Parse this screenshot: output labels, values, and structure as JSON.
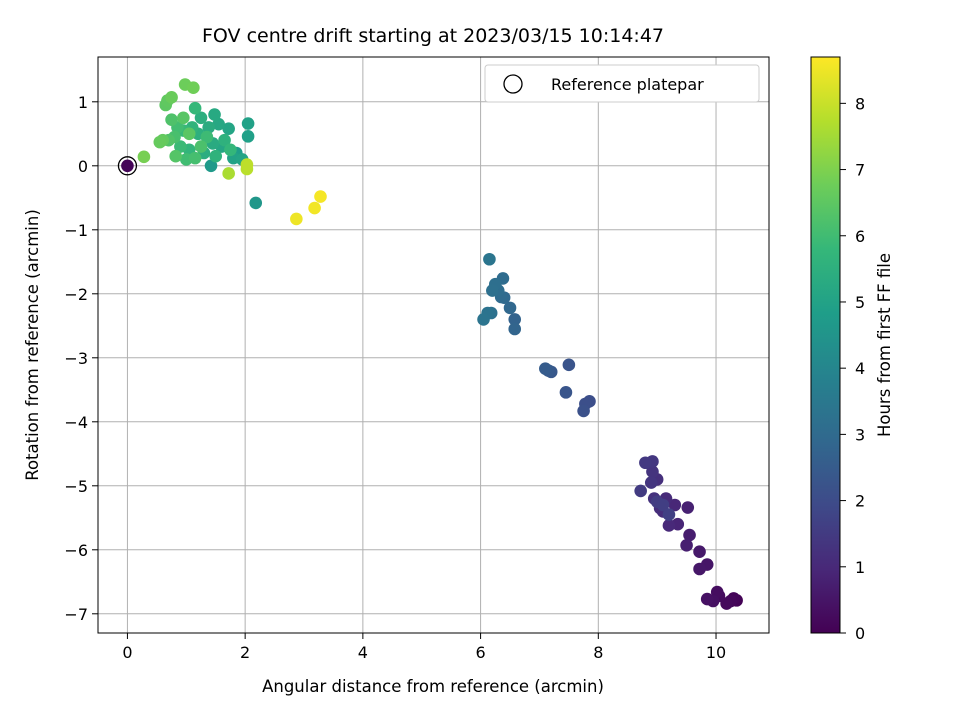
{
  "chart_data": {
    "type": "scatter",
    "title": "FOV centre drift starting at 2023/03/15 10:14:47",
    "xlabel": "Angular distance from reference (arcmin)",
    "ylabel": "Rotation from reference (arcmin)",
    "xlim": [
      -0.5,
      10.9
    ],
    "ylim": [
      -7.3,
      1.7
    ],
    "xticks": [
      0,
      2,
      4,
      6,
      8,
      10
    ],
    "yticks": [
      1,
      0,
      -1,
      -2,
      -3,
      -4,
      -5,
      -6,
      -7
    ],
    "grid": true,
    "legend": {
      "position": "upper-right",
      "entries": [
        "Reference platepar"
      ]
    },
    "colorbar": {
      "label": "Hours from first FF file",
      "range": [
        0,
        8.7
      ],
      "ticks": [
        0,
        1,
        2,
        3,
        4,
        5,
        6,
        7,
        8
      ],
      "colormap": "viridis"
    },
    "reference_point": {
      "x": 0,
      "y": 0,
      "c": 0.1
    },
    "points": [
      {
        "x": 10.35,
        "y": -6.79,
        "c": 0.05
      },
      {
        "x": 10.3,
        "y": -6.76,
        "c": 0.1
      },
      {
        "x": 10.25,
        "y": -6.8,
        "c": 0.15
      },
      {
        "x": 10.18,
        "y": -6.84,
        "c": 0.2
      },
      {
        "x": 10.05,
        "y": -6.72,
        "c": 0.25
      },
      {
        "x": 10.02,
        "y": -6.66,
        "c": 0.3
      },
      {
        "x": 9.95,
        "y": -6.8,
        "c": 0.35
      },
      {
        "x": 9.85,
        "y": -6.77,
        "c": 0.4
      },
      {
        "x": 9.85,
        "y": -6.23,
        "c": 0.5
      },
      {
        "x": 9.72,
        "y": -6.3,
        "c": 0.55
      },
      {
        "x": 9.72,
        "y": -6.03,
        "c": 0.6
      },
      {
        "x": 9.55,
        "y": -5.77,
        "c": 0.7
      },
      {
        "x": 9.5,
        "y": -5.93,
        "c": 0.75
      },
      {
        "x": 9.52,
        "y": -5.34,
        "c": 0.8
      },
      {
        "x": 9.35,
        "y": -5.6,
        "c": 0.9
      },
      {
        "x": 9.3,
        "y": -5.3,
        "c": 0.95
      },
      {
        "x": 9.2,
        "y": -5.62,
        "c": 1.0
      },
      {
        "x": 9.15,
        "y": -5.2,
        "c": 1.05
      },
      {
        "x": 9.1,
        "y": -5.4,
        "c": 1.1
      },
      {
        "x": 9.05,
        "y": -5.35,
        "c": 1.15
      },
      {
        "x": 9.0,
        "y": -4.9,
        "c": 1.2
      },
      {
        "x": 8.95,
        "y": -5.2,
        "c": 1.25
      },
      {
        "x": 8.92,
        "y": -4.78,
        "c": 1.3
      },
      {
        "x": 8.9,
        "y": -4.95,
        "c": 1.35
      },
      {
        "x": 8.92,
        "y": -4.62,
        "c": 1.4
      },
      {
        "x": 8.8,
        "y": -4.64,
        "c": 1.45
      },
      {
        "x": 8.72,
        "y": -5.08,
        "c": 1.5
      },
      {
        "x": 9.0,
        "y": -5.25,
        "c": 1.55
      },
      {
        "x": 9.1,
        "y": -5.3,
        "c": 1.6
      },
      {
        "x": 9.2,
        "y": -5.45,
        "c": 1.65
      },
      {
        "x": 7.85,
        "y": -3.68,
        "c": 2.05
      },
      {
        "x": 7.78,
        "y": -3.72,
        "c": 2.1
      },
      {
        "x": 7.75,
        "y": -3.83,
        "c": 2.15
      },
      {
        "x": 7.5,
        "y": -3.11,
        "c": 2.25
      },
      {
        "x": 7.45,
        "y": -3.54,
        "c": 2.3
      },
      {
        "x": 7.2,
        "y": -3.22,
        "c": 2.4
      },
      {
        "x": 7.15,
        "y": -3.2,
        "c": 2.45
      },
      {
        "x": 7.1,
        "y": -3.17,
        "c": 2.5
      },
      {
        "x": 6.58,
        "y": -2.4,
        "c": 2.75
      },
      {
        "x": 6.58,
        "y": -2.55,
        "c": 2.8
      },
      {
        "x": 6.5,
        "y": -2.22,
        "c": 2.9
      },
      {
        "x": 6.4,
        "y": -2.06,
        "c": 2.95
      },
      {
        "x": 6.35,
        "y": -2.05,
        "c": 3.0
      },
      {
        "x": 6.38,
        "y": -1.76,
        "c": 3.05
      },
      {
        "x": 6.3,
        "y": -1.95,
        "c": 3.1
      },
      {
        "x": 6.25,
        "y": -1.85,
        "c": 3.15
      },
      {
        "x": 6.2,
        "y": -1.95,
        "c": 3.2
      },
      {
        "x": 6.18,
        "y": -2.3,
        "c": 3.25
      },
      {
        "x": 6.12,
        "y": -2.3,
        "c": 3.3
      },
      {
        "x": 6.05,
        "y": -2.4,
        "c": 3.35
      },
      {
        "x": 6.15,
        "y": -1.46,
        "c": 3.4
      },
      {
        "x": 2.18,
        "y": -0.58,
        "c": 4.6
      },
      {
        "x": 1.42,
        "y": 0.0,
        "c": 4.7
      },
      {
        "x": 1.85,
        "y": 0.2,
        "c": 4.8
      },
      {
        "x": 2.05,
        "y": 0.46,
        "c": 4.9
      },
      {
        "x": 2.05,
        "y": 0.66,
        "c": 4.95
      },
      {
        "x": 1.8,
        "y": 0.12,
        "c": 5.0
      },
      {
        "x": 1.95,
        "y": 0.1,
        "c": 5.05
      },
      {
        "x": 1.72,
        "y": 0.58,
        "c": 5.1
      },
      {
        "x": 1.6,
        "y": 0.3,
        "c": 5.15
      },
      {
        "x": 1.55,
        "y": 0.65,
        "c": 5.2
      },
      {
        "x": 1.48,
        "y": 0.8,
        "c": 5.25
      },
      {
        "x": 1.45,
        "y": 0.35,
        "c": 5.3
      },
      {
        "x": 1.38,
        "y": 0.6,
        "c": 5.35
      },
      {
        "x": 1.3,
        "y": 0.2,
        "c": 5.4
      },
      {
        "x": 1.25,
        "y": 0.75,
        "c": 5.45
      },
      {
        "x": 1.2,
        "y": 0.5,
        "c": 5.5
      },
      {
        "x": 1.65,
        "y": 0.4,
        "c": 5.55
      },
      {
        "x": 1.5,
        "y": 0.15,
        "c": 5.6
      },
      {
        "x": 1.1,
        "y": 0.6,
        "c": 5.65
      },
      {
        "x": 1.05,
        "y": 0.25,
        "c": 5.7
      },
      {
        "x": 1.75,
        "y": 0.25,
        "c": 5.75
      },
      {
        "x": 1.15,
        "y": 0.9,
        "c": 5.8
      },
      {
        "x": 0.95,
        "y": 0.55,
        "c": 5.85
      },
      {
        "x": 0.9,
        "y": 0.3,
        "c": 5.9
      },
      {
        "x": 1.35,
        "y": 0.45,
        "c": 5.95
      },
      {
        "x": 1.0,
        "y": 0.1,
        "c": 6.0
      },
      {
        "x": 0.85,
        "y": 0.6,
        "c": 6.05
      },
      {
        "x": 1.15,
        "y": 0.12,
        "c": 6.1
      },
      {
        "x": 0.8,
        "y": 0.45,
        "c": 6.15
      },
      {
        "x": 1.25,
        "y": 0.3,
        "c": 6.2
      },
      {
        "x": 0.75,
        "y": 0.72,
        "c": 6.25
      },
      {
        "x": 0.7,
        "y": 0.4,
        "c": 6.3
      },
      {
        "x": 0.82,
        "y": 0.15,
        "c": 6.35
      },
      {
        "x": 0.95,
        "y": 0.75,
        "c": 6.4
      },
      {
        "x": 1.05,
        "y": 0.5,
        "c": 6.45
      },
      {
        "x": 0.65,
        "y": 0.95,
        "c": 6.5
      },
      {
        "x": 0.68,
        "y": 1.02,
        "c": 6.55
      },
      {
        "x": 0.6,
        "y": 0.4,
        "c": 6.6
      },
      {
        "x": 0.55,
        "y": 0.37,
        "c": 6.65
      },
      {
        "x": 0.75,
        "y": 1.07,
        "c": 6.7
      },
      {
        "x": 0.98,
        "y": 1.27,
        "c": 6.75
      },
      {
        "x": 1.12,
        "y": 1.22,
        "c": 6.8
      },
      {
        "x": 0.28,
        "y": 0.14,
        "c": 6.9
      },
      {
        "x": 1.72,
        "y": -0.12,
        "c": 7.6
      },
      {
        "x": 2.03,
        "y": -0.05,
        "c": 7.8
      },
      {
        "x": 2.03,
        "y": 0.02,
        "c": 7.85
      },
      {
        "x": 2.87,
        "y": -0.83,
        "c": 8.5
      },
      {
        "x": 3.18,
        "y": -0.66,
        "c": 8.55
      },
      {
        "x": 3.28,
        "y": -0.48,
        "c": 8.6
      }
    ]
  }
}
